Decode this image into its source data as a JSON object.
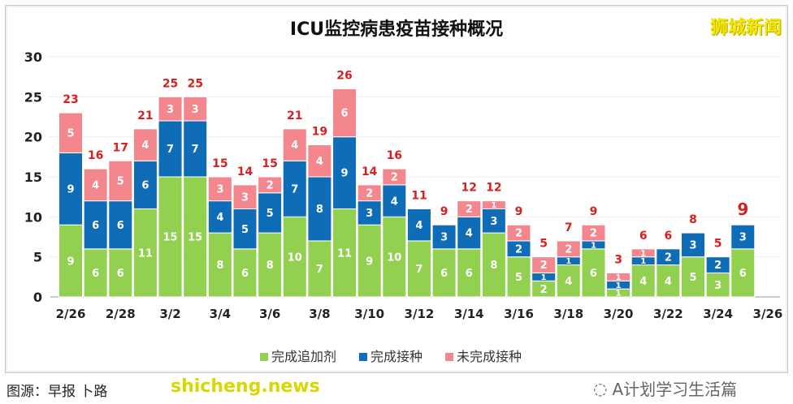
{
  "chart_data": {
    "type": "bar",
    "stacked": true,
    "title": "ICU监控病患疫苗接种概况",
    "categories": [
      "2/26",
      "2/27",
      "2/28",
      "3/1",
      "3/2",
      "3/3",
      "3/4",
      "3/5",
      "3/6",
      "3/7",
      "3/8",
      "3/9",
      "3/10",
      "3/11",
      "3/12",
      "3/13",
      "3/14",
      "3/15",
      "3/16",
      "3/17",
      "3/18",
      "3/19",
      "3/20",
      "3/21",
      "3/22",
      "3/23",
      "3/24",
      "3/25",
      "3/26"
    ],
    "x_tick_labels": [
      "2/26",
      "2/28",
      "3/2",
      "3/4",
      "3/6",
      "3/8",
      "3/10",
      "3/12",
      "3/14",
      "3/16",
      "3/18",
      "3/20",
      "3/22",
      "3/24",
      "3/26"
    ],
    "series": [
      {
        "name": "完成追加剂",
        "color": "#92d050",
        "values": [
          9,
          6,
          6,
          11,
          15,
          15,
          8,
          6,
          8,
          10,
          7,
          11,
          9,
          10,
          7,
          6,
          6,
          8,
          5,
          2,
          4,
          6,
          1,
          4,
          4,
          5,
          3,
          6,
          null
        ]
      },
      {
        "name": "完成接种",
        "color": "#0f6db8",
        "values": [
          9,
          6,
          6,
          6,
          7,
          7,
          4,
          5,
          5,
          7,
          8,
          9,
          3,
          4,
          4,
          3,
          4,
          3,
          2,
          1,
          1,
          1,
          1,
          1,
          2,
          3,
          2,
          3,
          null
        ]
      },
      {
        "name": "未完成接种",
        "color": "#f4878d",
        "values": [
          5,
          4,
          5,
          4,
          3,
          3,
          3,
          3,
          2,
          4,
          4,
          6,
          2,
          2,
          0,
          0,
          2,
          1,
          2,
          2,
          2,
          2,
          1,
          1,
          0,
          0,
          0,
          0,
          null
        ]
      }
    ],
    "totals": [
      23,
      16,
      17,
      21,
      25,
      25,
      15,
      14,
      15,
      21,
      19,
      26,
      14,
      16,
      11,
      9,
      12,
      12,
      9,
      5,
      7,
      9,
      3,
      6,
      6,
      8,
      5,
      9,
      null
    ],
    "ylim": [
      0,
      30
    ],
    "yticks": [
      0,
      5,
      10,
      15,
      20,
      25,
      30
    ],
    "grid": true,
    "legend": "bottom"
  },
  "logo": "狮城新闻",
  "source": "图源：早报 卜路",
  "watermark": "shicheng.news",
  "wechat_account": "A计划学习生活篇"
}
